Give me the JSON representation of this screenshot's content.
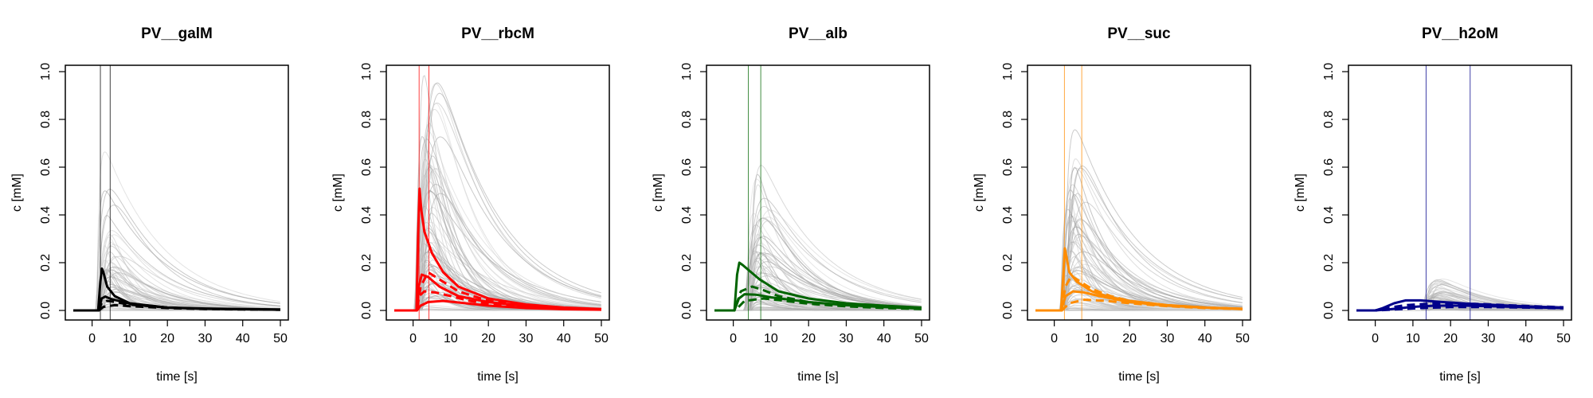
{
  "chart_data": [
    {
      "type": "line",
      "title": "PV__galM",
      "xlabel": "time [s]",
      "ylabel": "c [mM]",
      "xlim": [
        -5,
        50
      ],
      "ylim": [
        0,
        1
      ],
      "xticks": [
        0,
        10,
        20,
        30,
        40,
        50
      ],
      "yticks": [
        0.0,
        0.2,
        0.4,
        0.6,
        0.8,
        1.0
      ],
      "ytick_labels": [
        "0.0",
        "0.2",
        "0.4",
        "0.6",
        "0.8",
        "1.0"
      ],
      "color": "#000000",
      "vlines": [
        2.2,
        4.8
      ],
      "background_peak": 0.5,
      "background_count": 60,
      "series": [
        {
          "style": "solid",
          "values": [
            [
              -5,
              0
            ],
            [
              1.6,
              0
            ],
            [
              2.2,
              0.12
            ],
            [
              2.6,
              0.175
            ],
            [
              3,
              0.16
            ],
            [
              4,
              0.1
            ],
            [
              6,
              0.06
            ],
            [
              10,
              0.03
            ],
            [
              20,
              0.012
            ],
            [
              30,
              0.008
            ],
            [
              40,
              0.006
            ],
            [
              50,
              0.004
            ]
          ]
        },
        {
          "style": "solid",
          "values": [
            [
              -5,
              0
            ],
            [
              1.8,
              0
            ],
            [
              2.5,
              0.05
            ],
            [
              3.5,
              0.058
            ],
            [
              5,
              0.048
            ],
            [
              10,
              0.028
            ],
            [
              20,
              0.012
            ],
            [
              30,
              0.007
            ],
            [
              40,
              0.005
            ],
            [
              50,
              0.003
            ]
          ]
        },
        {
          "style": "dashed",
          "values": [
            [
              -5,
              0
            ],
            [
              1.8,
              0
            ],
            [
              2.5,
              0.03
            ],
            [
              4,
              0.04
            ],
            [
              6,
              0.036
            ],
            [
              10,
              0.024
            ],
            [
              20,
              0.012
            ],
            [
              30,
              0.007
            ],
            [
              40,
              0.005
            ],
            [
              50,
              0.003
            ]
          ]
        },
        {
          "style": "dashed",
          "values": [
            [
              -5,
              0
            ],
            [
              1.8,
              0
            ],
            [
              3,
              0.015
            ],
            [
              6,
              0.022
            ],
            [
              10,
              0.018
            ],
            [
              20,
              0.01
            ],
            [
              30,
              0.006
            ],
            [
              40,
              0.004
            ],
            [
              50,
              0.003
            ]
          ]
        }
      ]
    },
    {
      "type": "line",
      "title": "PV__rbcM",
      "xlabel": "time [s]",
      "ylabel": "c [mM]",
      "xlim": [
        -5,
        50
      ],
      "ylim": [
        0,
        1
      ],
      "xticks": [
        0,
        10,
        20,
        30,
        40,
        50
      ],
      "yticks": [
        0.0,
        0.2,
        0.4,
        0.6,
        0.8,
        1.0
      ],
      "ytick_labels": [
        "0.0",
        "0.2",
        "0.4",
        "0.6",
        "0.8",
        "1.0"
      ],
      "color": "#ff0000",
      "vlines": [
        1.6,
        4.2
      ],
      "background_peak": 1.0,
      "background_count": 90,
      "series": [
        {
          "style": "solid",
          "values": [
            [
              -5,
              0
            ],
            [
              0.9,
              0
            ],
            [
              1.3,
              0.3
            ],
            [
              1.7,
              0.51
            ],
            [
              2.2,
              0.42
            ],
            [
              3,
              0.33
            ],
            [
              5,
              0.24
            ],
            [
              8,
              0.16
            ],
            [
              12,
              0.1
            ],
            [
              20,
              0.05
            ],
            [
              30,
              0.025
            ],
            [
              40,
              0.012
            ],
            [
              50,
              0.006
            ]
          ]
        },
        {
          "style": "solid",
          "values": [
            [
              -5,
              0
            ],
            [
              1,
              0
            ],
            [
              1.5,
              0.1
            ],
            [
              2.3,
              0.15
            ],
            [
              4,
              0.14
            ],
            [
              7,
              0.1
            ],
            [
              12,
              0.06
            ],
            [
              20,
              0.035
            ],
            [
              30,
              0.018
            ],
            [
              40,
              0.01
            ],
            [
              50,
              0.005
            ]
          ]
        },
        {
          "style": "dashed",
          "values": [
            [
              -5,
              0
            ],
            [
              1,
              0
            ],
            [
              1.6,
              0.06
            ],
            [
              3,
              0.08
            ],
            [
              6,
              0.075
            ],
            [
              10,
              0.06
            ],
            [
              15,
              0.04
            ],
            [
              20,
              0.028
            ],
            [
              30,
              0.015
            ],
            [
              40,
              0.008
            ],
            [
              50,
              0.004
            ]
          ]
        },
        {
          "style": "solid",
          "values": [
            [
              -5,
              0
            ],
            [
              1,
              0
            ],
            [
              2,
              0.02
            ],
            [
              4,
              0.035
            ],
            [
              8,
              0.04
            ],
            [
              14,
              0.03
            ],
            [
              20,
              0.02
            ],
            [
              30,
              0.01
            ],
            [
              40,
              0.005
            ],
            [
              50,
              0.003
            ]
          ]
        },
        {
          "style": "dashed",
          "values": [
            [
              -5,
              0
            ],
            [
              1,
              0
            ],
            [
              2,
              0.1
            ],
            [
              4,
              0.16
            ],
            [
              7,
              0.13
            ],
            [
              12,
              0.08
            ],
            [
              20,
              0.04
            ],
            [
              30,
              0.02
            ],
            [
              40,
              0.01
            ],
            [
              50,
              0.005
            ]
          ]
        }
      ]
    },
    {
      "type": "line",
      "title": "PV__alb",
      "xlabel": "time [s]",
      "ylabel": "c [mM]",
      "xlim": [
        -5,
        50
      ],
      "ylim": [
        0,
        1
      ],
      "xticks": [
        0,
        10,
        20,
        30,
        40,
        50
      ],
      "yticks": [
        0.0,
        0.2,
        0.4,
        0.6,
        0.8,
        1.0
      ],
      "ytick_labels": [
        "0.0",
        "0.2",
        "0.4",
        "0.6",
        "0.8",
        "1.0"
      ],
      "color": "#006400",
      "vlines": [
        4.0,
        7.3
      ],
      "background_peak": 0.5,
      "background_count": 80,
      "series": [
        {
          "style": "solid",
          "values": [
            [
              -5,
              0
            ],
            [
              0.3,
              0
            ],
            [
              1,
              0.15
            ],
            [
              1.6,
              0.2
            ],
            [
              2.5,
              0.19
            ],
            [
              4,
              0.17
            ],
            [
              7,
              0.13
            ],
            [
              12,
              0.08
            ],
            [
              20,
              0.05
            ],
            [
              30,
              0.03
            ],
            [
              40,
              0.02
            ],
            [
              50,
              0.012
            ]
          ]
        },
        {
          "style": "solid",
          "values": [
            [
              -5,
              0
            ],
            [
              0.3,
              0
            ],
            [
              1.5,
              0.05
            ],
            [
              3,
              0.068
            ],
            [
              6,
              0.066
            ],
            [
              10,
              0.055
            ],
            [
              20,
              0.035
            ],
            [
              30,
              0.022
            ],
            [
              40,
              0.014
            ],
            [
              50,
              0.008
            ]
          ]
        },
        {
          "style": "dashed",
          "values": [
            [
              -5,
              0
            ],
            [
              0.3,
              0
            ],
            [
              2,
              0.08
            ],
            [
              5,
              0.1
            ],
            [
              8,
              0.085
            ],
            [
              12,
              0.06
            ],
            [
              20,
              0.035
            ],
            [
              30,
              0.02
            ],
            [
              40,
              0.012
            ],
            [
              50,
              0.007
            ]
          ]
        },
        {
          "style": "dashed",
          "values": [
            [
              -5,
              0
            ],
            [
              0.5,
              0
            ],
            [
              3,
              0.04
            ],
            [
              8,
              0.05
            ],
            [
              14,
              0.04
            ],
            [
              20,
              0.028
            ],
            [
              30,
              0.017
            ],
            [
              40,
              0.01
            ],
            [
              50,
              0.006
            ]
          ]
        }
      ]
    },
    {
      "type": "line",
      "title": "PV__suc",
      "xlabel": "time [s]",
      "ylabel": "c [mM]",
      "xlim": [
        -5,
        50
      ],
      "ylim": [
        0,
        1
      ],
      "xticks": [
        0,
        10,
        20,
        30,
        40,
        50
      ],
      "yticks": [
        0.0,
        0.2,
        0.4,
        0.6,
        0.8,
        1.0
      ],
      "ytick_labels": [
        "0.0",
        "0.2",
        "0.4",
        "0.6",
        "0.8",
        "1.0"
      ],
      "color": "#ff8c00",
      "vlines": [
        2.7,
        7.3
      ],
      "background_peak": 0.63,
      "background_count": 80,
      "series": [
        {
          "style": "solid",
          "values": [
            [
              -5,
              0
            ],
            [
              1.8,
              0
            ],
            [
              2.4,
              0.15
            ],
            [
              2.8,
              0.26
            ],
            [
              3.3,
              0.22
            ],
            [
              4,
              0.16
            ],
            [
              6,
              0.12
            ],
            [
              10,
              0.08
            ],
            [
              15,
              0.055
            ],
            [
              20,
              0.04
            ],
            [
              30,
              0.022
            ],
            [
              40,
              0.012
            ],
            [
              50,
              0.007
            ]
          ]
        },
        {
          "style": "solid",
          "values": [
            [
              -5,
              0
            ],
            [
              1.8,
              0
            ],
            [
              3,
              0.06
            ],
            [
              5,
              0.08
            ],
            [
              8,
              0.075
            ],
            [
              12,
              0.06
            ],
            [
              20,
              0.035
            ],
            [
              30,
              0.02
            ],
            [
              40,
              0.012
            ],
            [
              50,
              0.006
            ]
          ]
        },
        {
          "style": "dashed",
          "values": [
            [
              -5,
              0
            ],
            [
              1.8,
              0
            ],
            [
              3,
              0.1
            ],
            [
              4.5,
              0.145
            ],
            [
              7,
              0.12
            ],
            [
              10,
              0.09
            ],
            [
              15,
              0.06
            ],
            [
              20,
              0.04
            ],
            [
              30,
              0.022
            ],
            [
              40,
              0.012
            ],
            [
              50,
              0.007
            ]
          ]
        },
        {
          "style": "dashed",
          "values": [
            [
              -5,
              0
            ],
            [
              2,
              0
            ],
            [
              4,
              0.03
            ],
            [
              8,
              0.045
            ],
            [
              14,
              0.04
            ],
            [
              20,
              0.03
            ],
            [
              30,
              0.018
            ],
            [
              40,
              0.01
            ],
            [
              50,
              0.006
            ]
          ]
        }
      ]
    },
    {
      "type": "line",
      "title": "PV__h2oM",
      "xlabel": "time [s]",
      "ylabel": "c [mM]",
      "xlim": [
        -5,
        50
      ],
      "ylim": [
        0,
        1
      ],
      "xticks": [
        0,
        10,
        20,
        30,
        40,
        50
      ],
      "yticks": [
        0.0,
        0.2,
        0.4,
        0.6,
        0.8,
        1.0
      ],
      "ytick_labels": [
        "0.0",
        "0.2",
        "0.4",
        "0.6",
        "0.8",
        "1.0"
      ],
      "color": "#00008b",
      "vlines": [
        13.5,
        25.2
      ],
      "background_peak": 0.13,
      "background_count": 60,
      "series": [
        {
          "style": "solid",
          "values": [
            [
              -5,
              0
            ],
            [
              0,
              0
            ],
            [
              2,
              0.01
            ],
            [
              5,
              0.03
            ],
            [
              8,
              0.042
            ],
            [
              12,
              0.042
            ],
            [
              18,
              0.035
            ],
            [
              25,
              0.028
            ],
            [
              30,
              0.024
            ],
            [
              40,
              0.017
            ],
            [
              50,
              0.012
            ]
          ]
        },
        {
          "style": "dashed",
          "values": [
            [
              -5,
              0
            ],
            [
              0,
              0
            ],
            [
              3,
              0.01
            ],
            [
              8,
              0.022
            ],
            [
              14,
              0.028
            ],
            [
              20,
              0.03
            ],
            [
              28,
              0.027
            ],
            [
              35,
              0.022
            ],
            [
              45,
              0.016
            ],
            [
              50,
              0.013
            ]
          ]
        },
        {
          "style": "solid",
          "values": [
            [
              -5,
              0
            ],
            [
              0,
              0
            ],
            [
              4,
              0.005
            ],
            [
              10,
              0.015
            ],
            [
              16,
              0.02
            ],
            [
              24,
              0.02
            ],
            [
              32,
              0.017
            ],
            [
              42,
              0.013
            ],
            [
              50,
              0.01
            ]
          ]
        },
        {
          "style": "dashed",
          "values": [
            [
              -5,
              0
            ],
            [
              0,
              0
            ],
            [
              5,
              0.004
            ],
            [
              12,
              0.01
            ],
            [
              20,
              0.014
            ],
            [
              30,
              0.014
            ],
            [
              40,
              0.012
            ],
            [
              50,
              0.009
            ]
          ]
        }
      ]
    }
  ]
}
